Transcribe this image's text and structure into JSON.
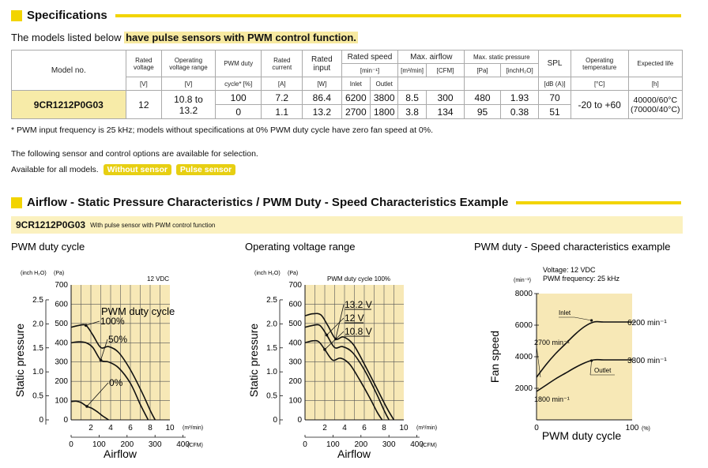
{
  "spec_section": {
    "title": "Specifications",
    "intro_prefix": "The models listed below ",
    "intro_highlight": "have pulse sensors with PWM control function.",
    "headers": {
      "model_no": "Model no.",
      "rated_voltage": "Rated voltage",
      "rated_voltage_unit": "[V]",
      "op_voltage": "Operating voltage range",
      "op_voltage_unit": "[V]",
      "pwm_duty": "PWM duty",
      "pwm_duty_unit": "cycle* [%]",
      "rated_current": "Rated current",
      "rated_current_unit": "[A]",
      "rated_input": "Rated input",
      "rated_input_unit": "[W]",
      "rated_speed": "Rated speed",
      "rated_speed_unit": "[min⁻¹]",
      "inlet": "Inlet",
      "outlet": "Outlet",
      "max_airflow": "Max. airflow",
      "airflow_unit1": "[m³/min]",
      "airflow_unit2": "[CFM]",
      "max_static": "Max. static pressure",
      "static_unit1": "[Pa]",
      "static_unit2": "[inchH₂O]",
      "spl": "SPL",
      "spl_unit": "[dB (A)]",
      "op_temp": "Operating temperature",
      "op_temp_unit": "[°C]",
      "life": "Expected life",
      "life_unit": "[h]"
    },
    "model": "9CR1212P0G03",
    "rated_voltage": "12",
    "op_voltage": "10.8 to 13.2",
    "op_temp": "-20 to +60",
    "life_line1": "40000/60°C",
    "life_line2": "(70000/40°C)",
    "rows": [
      {
        "pwm": "100",
        "current": "7.2",
        "input": "86.4",
        "inlet": "6200",
        "outlet": "3800",
        "air_m3": "8.5",
        "air_cfm": "300",
        "sp_pa": "480",
        "sp_in": "1.93",
        "spl": "70"
      },
      {
        "pwm": "0",
        "current": "1.1",
        "input": "13.2",
        "inlet": "2700",
        "outlet": "1800",
        "air_m3": "3.8",
        "air_cfm": "134",
        "sp_pa": "95",
        "sp_in": "0.38",
        "spl": "51"
      }
    ],
    "footnote": "* PWM input frequency is 25 kHz; models without specifications at 0% PWM duty cycle have zero fan speed at 0%.",
    "options_text": "The following sensor and control options are available for selection.",
    "available_text": "Available for all models.",
    "option_1": "Without sensor",
    "option_2": "Pulse sensor"
  },
  "char_section": {
    "title": "Airflow - Static Pressure Characteristics / PWM Duty - Speed Characteristics Example",
    "band_model": "9CR1212P0G03",
    "band_sub": "With pulse sensor with PWM control function"
  },
  "chart_data": [
    {
      "type": "line",
      "title": "PWM duty cycle",
      "annotation_voltage": "12 VDC",
      "legend_title": "PWM duty cycle",
      "xlabel": "Airflow",
      "ylabel": "Static pressure",
      "x_unit_top": "(m³/min)",
      "x_unit_bottom": "(CFM)",
      "y_unit_left": "(inch H₂O)",
      "y_unit_right": "(Pa)",
      "xlim": [
        0,
        10
      ],
      "ylim": [
        0,
        700
      ],
      "x_ticks_m3": [
        "0",
        "2",
        "4",
        "6",
        "8",
        "10"
      ],
      "x_ticks_cfm": [
        "0",
        "100",
        "200",
        "300",
        "400"
      ],
      "y_ticks_pa": [
        "0",
        "100",
        "200",
        "300",
        "400",
        "500",
        "600",
        "700"
      ],
      "y_ticks_inch": [
        "0",
        "0.5",
        "1.0",
        "1.5",
        "2.0",
        "2.5"
      ],
      "series": [
        {
          "name": "100%",
          "x": [
            0,
            0.8,
            1.5,
            2.2,
            3.0,
            3.8,
            4.8,
            6.0,
            7.2,
            8.0,
            8.5
          ],
          "y": [
            480,
            490,
            490,
            440,
            375,
            380,
            350,
            260,
            140,
            50,
            0
          ]
        },
        {
          "name": "50%",
          "x": [
            0,
            0.8,
            1.5,
            2.2,
            3.0,
            3.8,
            4.8,
            6.0,
            7.0,
            7.8
          ],
          "y": [
            400,
            405,
            400,
            375,
            310,
            300,
            270,
            190,
            80,
            0
          ]
        },
        {
          "name": "0%",
          "x": [
            0,
            0.5,
            1.0,
            1.6,
            2.1,
            2.7,
            3.2,
            3.8
          ],
          "y": [
            95,
            97,
            90,
            70,
            60,
            40,
            20,
            0
          ]
        }
      ]
    },
    {
      "type": "line",
      "title": "Operating voltage range",
      "annotation_voltage": "PWM duty cycle 100%",
      "xlabel": "Airflow",
      "ylabel": "Static pressure",
      "x_unit_top": "(m³/min)",
      "x_unit_bottom": "(CFM)",
      "y_unit_left": "(inch H₂O)",
      "y_unit_right": "(Pa)",
      "xlim": [
        0,
        10
      ],
      "ylim": [
        0,
        700
      ],
      "x_ticks_m3": [
        "0",
        "2",
        "4",
        "6",
        "8",
        "10"
      ],
      "x_ticks_cfm": [
        "0",
        "100",
        "200",
        "300",
        "400"
      ],
      "y_ticks_pa": [
        "0",
        "100",
        "200",
        "300",
        "400",
        "500",
        "600",
        "700"
      ],
      "y_ticks_inch": [
        "0",
        "0.5",
        "1.0",
        "1.5",
        "2.0",
        "2.5"
      ],
      "series": [
        {
          "name": "13.2 V",
          "x": [
            0,
            0.8,
            1.6,
            2.3,
            3.1,
            3.9,
            4.9,
            6.0,
            7.3,
            8.3,
            9.0
          ],
          "y": [
            540,
            550,
            545,
            490,
            420,
            430,
            390,
            290,
            160,
            60,
            0
          ]
        },
        {
          "name": "12 V",
          "x": [
            0,
            0.8,
            1.5,
            2.2,
            3.0,
            3.8,
            4.8,
            6.0,
            7.2,
            8.0,
            8.5
          ],
          "y": [
            480,
            490,
            490,
            440,
            375,
            380,
            350,
            260,
            140,
            50,
            0
          ]
        },
        {
          "name": "10.8 V",
          "x": [
            0,
            0.8,
            1.4,
            2.0,
            2.8,
            3.6,
            4.5,
            5.5,
            6.6,
            7.3,
            7.8
          ],
          "y": [
            400,
            410,
            405,
            365,
            310,
            320,
            290,
            210,
            110,
            40,
            0
          ]
        }
      ]
    },
    {
      "type": "line",
      "title": "PWM duty - Speed characteristics example",
      "annotation_line1": "Voltage: 12 VDC",
      "annotation_line2": "PWM frequency: 25 kHz",
      "xlabel": "PWM duty cycle",
      "ylabel": "Fan speed",
      "x_unit": "(%)",
      "y_unit": "(min⁻¹)",
      "xlim": [
        0,
        100
      ],
      "ylim": [
        0,
        8000
      ],
      "x_ticks": [
        "0",
        "100"
      ],
      "y_ticks": [
        "2000",
        "4000",
        "6000",
        "8000"
      ],
      "series": [
        {
          "name": "Inlet",
          "x": [
            0,
            10,
            20,
            30,
            40,
            50,
            60,
            70,
            80,
            90,
            100
          ],
          "y": [
            2700,
            3500,
            4200,
            4800,
            5400,
            5900,
            6200,
            6200,
            6200,
            6200,
            6200
          ]
        },
        {
          "name": "Outlet",
          "x": [
            0,
            10,
            20,
            30,
            40,
            50,
            60,
            70,
            80,
            90,
            100
          ],
          "y": [
            1800,
            2200,
            2600,
            2950,
            3300,
            3600,
            3800,
            3800,
            3800,
            3800,
            3800
          ]
        }
      ],
      "labels": {
        "inlet_end": "6200 min⁻¹",
        "outlet_end": "3800 min⁻¹",
        "inlet_start": "2700 min⁻¹",
        "outlet_start": "1800 min⁻¹"
      }
    }
  ]
}
